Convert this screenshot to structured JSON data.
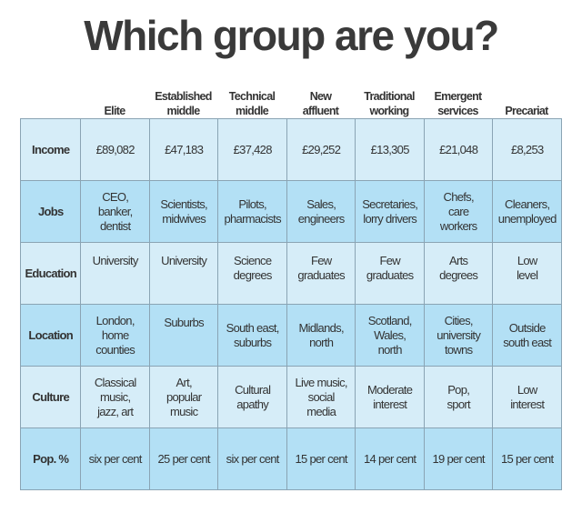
{
  "title": "Which group are you?",
  "columns": [
    "Elite",
    "Established\nmiddle",
    "Technical\nmiddle",
    "New\naffluent",
    "Traditional\nworking",
    "Emergent\nservices",
    "Precariat"
  ],
  "rows": [
    {
      "label": "Income",
      "cells": [
        "£89,082",
        "£47,183",
        "£37,428",
        "£29,252",
        "£13,305",
        "£21,048",
        "£8,253"
      ]
    },
    {
      "label": "Jobs",
      "cells": [
        "CEO,\nbanker,\ndentist",
        "Scientists,\nmidwives",
        "Pilots,\npharmacists",
        "Sales,\nengineers",
        "Secretaries,\nlorry drivers",
        "Chefs,\ncare\nworkers",
        "Cleaners,\nunemployed"
      ]
    },
    {
      "label": "Education",
      "cells": [
        "University",
        "University",
        "Science\ndegrees",
        "Few\ngraduates",
        "Few\ngraduates",
        "Arts\ndegrees",
        "Low\nlevel"
      ]
    },
    {
      "label": "Location",
      "cells": [
        "London,\nhome\ncounties",
        "Suburbs",
        "South east,\nsuburbs",
        "Midlands,\nnorth",
        "Scotland,\nWales,\nnorth",
        "Cities,\nuniversity\ntowns",
        "Outside\nsouth east"
      ]
    },
    {
      "label": "Culture",
      "cells": [
        "Classical\nmusic,\njazz, art",
        "Art,\npopular\nmusic",
        "Cultural\napathy",
        "Live music,\nsocial\nmedia",
        "Moderate\ninterest",
        "Pop,\nsport",
        "Low\ninterest"
      ]
    },
    {
      "label": "Pop. %",
      "cells": [
        "six per cent",
        "25 per cent",
        "six per cent",
        "15 per cent",
        "14 per cent",
        "19 per cent",
        "15 per cent"
      ]
    }
  ]
}
